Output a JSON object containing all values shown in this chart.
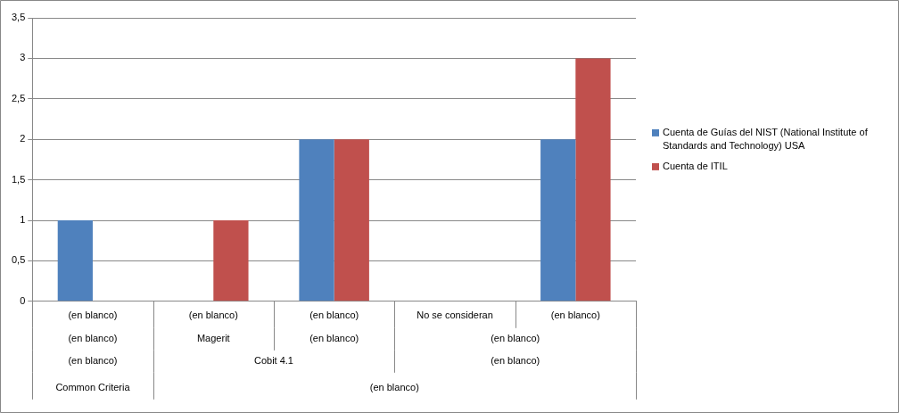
{
  "chart_data": {
    "type": "bar",
    "categories": [
      "(en blanco)",
      "(en blanco)",
      "(en blanco)",
      "No se consideran",
      "(en blanco)"
    ],
    "series": [
      {
        "name": "Cuenta de Guías del NIST (National Institute of Standards and Technology) USA",
        "color": "#4f81bd",
        "values": [
          1,
          null,
          2,
          null,
          2
        ]
      },
      {
        "name": "Cuenta de ITIL",
        "color": "#c0504d",
        "values": [
          null,
          1,
          2,
          null,
          3
        ]
      }
    ],
    "ylim": [
      0,
      3.5
    ],
    "yticks": [
      0,
      {
        "value": 0.5,
        "label": "0,5"
      },
      1,
      {
        "value": 1.5,
        "label": "1,5"
      },
      2,
      {
        "value": 2.5,
        "label": "2,5"
      },
      3,
      {
        "value": 3.5,
        "label": "3,5"
      }
    ],
    "grid": "y",
    "legend": "right",
    "annotations": [
      "(en blanco)",
      "Magerit",
      "(en blanco)",
      "(en blanco)",
      "(en blanco)",
      "Cobit 4.1",
      "(en blanco)",
      "Common Criteria",
      "(en blanco)"
    ]
  }
}
